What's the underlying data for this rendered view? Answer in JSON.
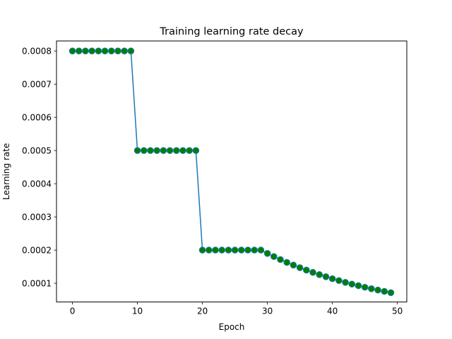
{
  "chart_data": {
    "type": "line",
    "title": "Training learning rate decay",
    "xlabel": "Epoch",
    "ylabel": "Learning rate",
    "xlim": [
      -2.45,
      51.45
    ],
    "ylim": [
      4.36e-05,
      0.0008302
    ],
    "xticks": [
      0,
      10,
      20,
      30,
      40,
      50
    ],
    "xtick_labels": [
      "0",
      "10",
      "20",
      "30",
      "40",
      "50"
    ],
    "yticks": [
      0.0001,
      0.0002,
      0.0003,
      0.0004,
      0.0005,
      0.0006,
      0.0007,
      0.0008
    ],
    "ytick_labels": [
      "0.0001",
      "0.0002",
      "0.0003",
      "0.0004",
      "0.0005",
      "0.0006",
      "0.0007",
      "0.0008"
    ],
    "grid": false,
    "line_color": "#1f77b4",
    "marker_face_color": "#008000",
    "series": [
      {
        "x": [
          0,
          1,
          2,
          3,
          4,
          5,
          6,
          7,
          8,
          9,
          10,
          11,
          12,
          13,
          14,
          15,
          16,
          17,
          18,
          19,
          20,
          21,
          22,
          23,
          24,
          25,
          26,
          27,
          28,
          29,
          30,
          31,
          32,
          33,
          34,
          35,
          36,
          37,
          38,
          39,
          40,
          41,
          42,
          43,
          44,
          45,
          46,
          47,
          48,
          49
        ],
        "values": [
          0.0008,
          0.0008,
          0.0008,
          0.0008,
          0.0008,
          0.0008,
          0.0008,
          0.0008,
          0.0008,
          0.0008,
          0.0005,
          0.0005,
          0.0005,
          0.0005,
          0.0005,
          0.0005,
          0.0005,
          0.0005,
          0.0005,
          0.0005,
          0.0002,
          0.0002,
          0.0002,
          0.0002,
          0.0002,
          0.0002,
          0.0002,
          0.0002,
          0.0002,
          0.0002,
          0.00019,
          0.0001805,
          0.0001715,
          0.0001629,
          0.0001548,
          0.000147,
          0.0001397,
          0.0001327,
          0.0001261,
          0.0001198,
          0.0001138,
          0.0001081,
          0.0001027,
          9.75e-05,
          9.27e-05,
          8.8e-05,
          8.36e-05,
          7.95e-05,
          7.55e-05,
          7.17e-05
        ]
      }
    ]
  }
}
